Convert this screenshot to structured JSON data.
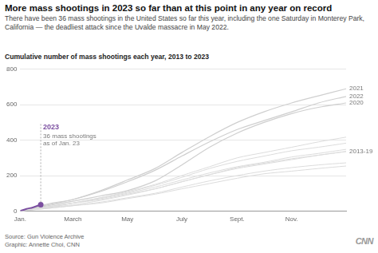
{
  "chart_data": {
    "type": "line",
    "title": "More mass shootings in 2023 so far than at this point in any year on record",
    "subtitle": "There have been 36 mass shootings in the United States so far this year, including the one Saturday in Monterey Park, California — the deadliest attack since the Uvalde massacre in May 2022.",
    "y_label": "Cumulative number of mass shootings each year, 2013 to 2023",
    "x": [
      0,
      31,
      59,
      90,
      120,
      151,
      181,
      212,
      243,
      273,
      304,
      334,
      365
    ],
    "xlim": [
      0,
      365
    ],
    "xticks": [
      {
        "value": 0,
        "label": "Jan."
      },
      {
        "value": 59,
        "label": "March"
      },
      {
        "value": 120,
        "label": "May"
      },
      {
        "value": 181,
        "label": "July"
      },
      {
        "value": 243,
        "label": "Sept."
      },
      {
        "value": 304,
        "label": "Nov."
      }
    ],
    "ylim": [
      0,
      800
    ],
    "yticks": [
      0,
      200,
      400,
      600,
      800
    ],
    "grid": true,
    "legend": "none",
    "series": [
      {
        "group": "2013-19",
        "color": "#dcdcdc",
        "values": [
          0,
          15,
          30,
          45,
          70,
          95,
          125,
          155,
          185,
          210,
          225,
          240,
          254
        ]
      },
      {
        "group": "2013-19",
        "color": "#dcdcdc",
        "values": [
          0,
          15,
          30,
          50,
          75,
          100,
          135,
          170,
          200,
          225,
          245,
          260,
          272
        ]
      },
      {
        "group": "2013-19",
        "color": "#dcdcdc",
        "values": [
          0,
          20,
          35,
          60,
          90,
          125,
          165,
          205,
          240,
          265,
          290,
          315,
          336
        ]
      },
      {
        "group": "2013-19",
        "color": "#dcdcdc",
        "values": [
          0,
          20,
          45,
          75,
          105,
          145,
          190,
          240,
          280,
          310,
          340,
          360,
          383
        ]
      },
      {
        "group": "2013-19",
        "color": "#dcdcdc",
        "values": [
          0,
          25,
          45,
          70,
          100,
          135,
          175,
          215,
          250,
          275,
          305,
          325,
          348
        ]
      },
      {
        "group": "2013-19",
        "color": "#dcdcdc",
        "values": [
          0,
          25,
          45,
          65,
          95,
          125,
          165,
          205,
          245,
          270,
          295,
          315,
          336
        ]
      },
      {
        "group": "2013-19",
        "color": "#dcdcdc",
        "values": [
          0,
          20,
          45,
          75,
          110,
          150,
          200,
          250,
          300,
          330,
          360,
          390,
          417
        ]
      },
      {
        "name": "2020",
        "color": "#cfcfcf",
        "values": [
          0,
          30,
          55,
          85,
          115,
          170,
          260,
          360,
          440,
          500,
          550,
          585,
          610
        ]
      },
      {
        "name": "2021",
        "color": "#cfcfcf",
        "values": [
          0,
          40,
          65,
          115,
          175,
          240,
          330,
          420,
          500,
          560,
          610,
          650,
          690
        ]
      },
      {
        "name": "2022",
        "color": "#cfcfcf",
        "values": [
          0,
          35,
          65,
          110,
          165,
          230,
          310,
          390,
          460,
          510,
          560,
          610,
          647
        ]
      },
      {
        "name": "2023",
        "color": "#7b4fa0",
        "marker": "circle",
        "x": [
          0,
          7,
          14,
          23
        ],
        "values": [
          0,
          12,
          20,
          36
        ]
      }
    ],
    "annotations": [
      {
        "series": "2023",
        "text": [
          "36 mass shootings",
          "as of Jan. 23"
        ]
      }
    ],
    "source": "Source: Gun Violence Archive",
    "credit": "Graphic: Annette Choi, CNN",
    "logo": "CNN"
  }
}
